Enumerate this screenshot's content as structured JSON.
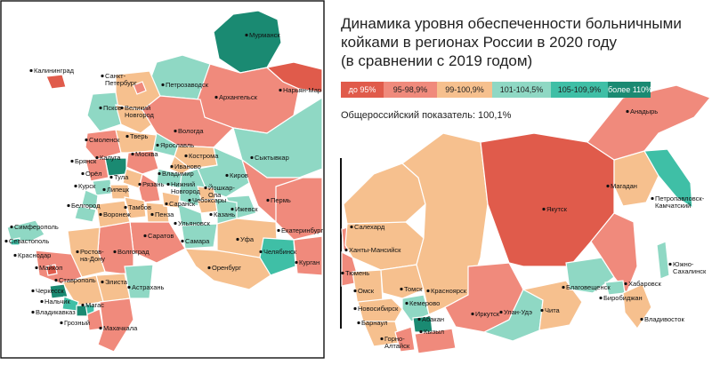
{
  "title": {
    "line1": "Динамика уровня обеспеченности больничными",
    "line2": "койками в регионах России в 2020 году",
    "line3": "(в сравнении с 2019 годом)"
  },
  "legend": [
    {
      "label": "до 95%",
      "color": "#e05b4b",
      "text_color": "#ffffff"
    },
    {
      "label": "95-98,9%",
      "color": "#f08a7c",
      "text_color": "#222222"
    },
    {
      "label": "99-100,9%",
      "color": "#f6c08e",
      "text_color": "#222222"
    },
    {
      "label": "101-104,5%",
      "color": "#8fd8c4",
      "text_color": "#222222"
    },
    {
      "label": "105-109,9%",
      "color": "#3fbfa6",
      "text_color": "#222222"
    },
    {
      "label": "более 110%",
      "color": "#1a8a72",
      "text_color": "#ffffff"
    }
  ],
  "national": "Общероссийский показатель: 100,1%",
  "colors": {
    "frame": "#111111",
    "sea": "#ffffff"
  },
  "cities": {
    "murmansk": "Мурманск",
    "kaliningrad": "Калининград",
    "spb": "Санкт-Петербург",
    "petrozavodsk": "Петрозаводск",
    "arkhangelsk": "Архангельск",
    "naryanmar": "Нарьян-Мар",
    "pskov": "Псков",
    "vnovgorod": "Великий Новгород",
    "vologda": "Вологда",
    "smolensk": "Смоленск",
    "tver": "Тверь",
    "yaroslavl": "Ярославль",
    "moskva": "Москва",
    "kostroma": "Кострома",
    "ivanovo": "Иваново",
    "syktyvkar": "Сыктывкар",
    "bryansk": "Брянск",
    "kaluga": "Калуга",
    "tula": "Тула",
    "vladimir": "Владимир",
    "oryol": "Орёл",
    "kursk": "Курск",
    "lipetsk": "Липецк",
    "ryazan": "Рязань",
    "nnovgorod": "Нижний Новгород",
    "kirov": "Киров",
    "yoshkarola": "Йошкар-Ола",
    "cheboksary": "Чебоксары",
    "belgorod": "Белгород",
    "tambov": "Тамбов",
    "saransk": "Саранск",
    "izhevsk": "Ижевск",
    "perm": "Пермь",
    "kazan": "Казань",
    "voronezh": "Воронеж",
    "penza": "Пенза",
    "ulyanovsk": "Ульяновск",
    "simferopol": "Симферополь",
    "ekaterinburg": "Екатеринбург",
    "sevastopol": "Севастополь",
    "saratov": "Саратов",
    "samara": "Самара",
    "krasnodar": "Краснодар",
    "rostov": "Ростов-на-Дону",
    "volgograd": "Волгоград",
    "ufa": "Уфа",
    "chelyabinsk": "Челябинск",
    "maikop": "Майкоп",
    "orenburg": "Оренбург",
    "kurgan": "Курган",
    "stavropol": "Ставрополь",
    "elista": "Элиста",
    "astrakhan": "Астрахань",
    "cherkessk": "Черкесск",
    "nalchik": "Нальчик",
    "magas": "Магас",
    "vladikavkaz": "Владикавказ",
    "grozny": "Грозный",
    "makhachkala": "Махачкала",
    "salekhard": "Салехард",
    "khantymansiysk": "Ханты-Мансийск",
    "tyumen": "Тюмень",
    "omsk": "Омск",
    "tomsk": "Томск",
    "krasnoyarsk": "Красноярск",
    "novosibirsk": "Новосибирск",
    "kemerovo": "Кемерово",
    "barnaul": "Барнаул",
    "abakan": "Абакан",
    "gornoaltaysk": "Горно-Алтайск",
    "kyzyl": "Кызыл",
    "irkutsk": "Иркутск",
    "ulanude": "Улан-Удэ",
    "chita": "Чита",
    "yakutsk": "Якутск",
    "magadan": "Магадан",
    "anadyr": "Анадырь",
    "petropavlovsk": "Петропавловск-Камчатский",
    "blagoveshchensk": "Благовещенск",
    "khabarovsk": "Хабаровск",
    "birobidzhan": "Биробиджан",
    "vladivostok": "Владивосток",
    "yuzhno": "Южно-Сахалинск"
  }
}
